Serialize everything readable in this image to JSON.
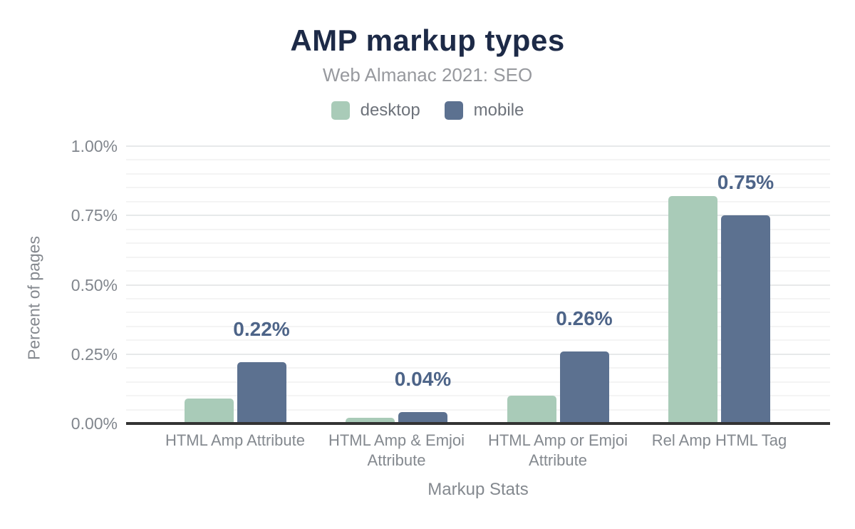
{
  "chart_data": {
    "type": "bar",
    "title": "AMP markup types",
    "subtitle": "Web Almanac 2021: SEO",
    "xlabel": "Markup Stats",
    "ylabel": "Percent of pages",
    "categories": [
      "HTML Amp Attribute",
      "HTML Amp & Emjoi Attribute",
      "HTML Amp or Emjoi Attribute",
      "Rel Amp HTML Tag"
    ],
    "series": [
      {
        "name": "desktop",
        "color": "#a9cbb8",
        "values": [
          0.09,
          0.02,
          0.1,
          0.82
        ],
        "labels": [
          "",
          "",
          "",
          ""
        ]
      },
      {
        "name": "mobile",
        "color": "#5c7190",
        "values": [
          0.22,
          0.04,
          0.26,
          0.75
        ],
        "labels": [
          "0.22%",
          "0.04%",
          "0.26%",
          "0.75%"
        ]
      }
    ],
    "ylim": [
      0,
      1.0
    ],
    "yticks": [
      {
        "value": 0.0,
        "label": "0.00%"
      },
      {
        "value": 0.25,
        "label": "0.25%"
      },
      {
        "value": 0.5,
        "label": "0.50%"
      },
      {
        "value": 0.75,
        "label": "0.75%"
      },
      {
        "value": 1.0,
        "label": "1.00%"
      }
    ],
    "minor_grid_step": 0.05,
    "grid": true,
    "legend_position": "top",
    "colors": {
      "title": "#1d2a47",
      "subtitle": "#97999e",
      "bar_label": "#4d6488",
      "axis_line": "#333333",
      "tick_label": "#81868d"
    }
  }
}
